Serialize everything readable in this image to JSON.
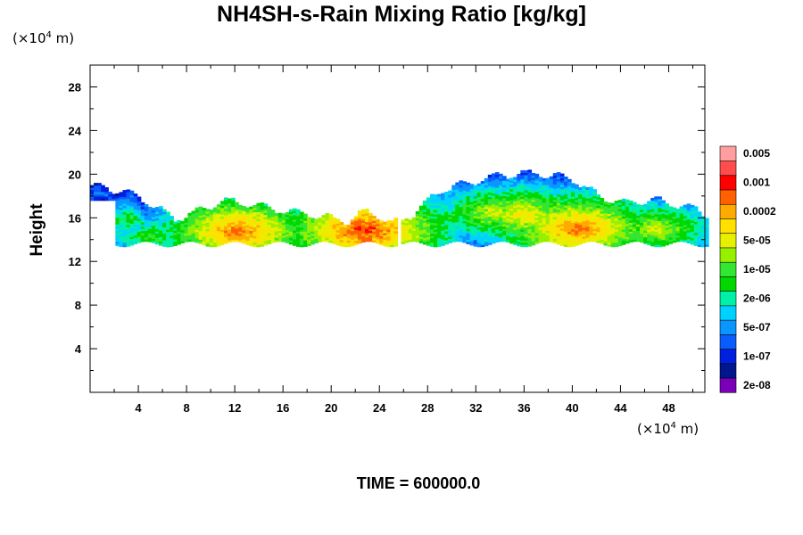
{
  "chart_data": {
    "type": "heatmap",
    "title": "NH4SH-s-Rain Mixing Ratio [kg/kg]",
    "ylabel": "Height",
    "x_unit": {
      "prefix": "(×10",
      "exp": "4",
      "suffix": " m)"
    },
    "y_unit": {
      "prefix": "(×10",
      "exp": "4",
      "suffix": " m)"
    },
    "xlim": [
      0,
      51
    ],
    "ylim": [
      0,
      30
    ],
    "x_ticks": [
      4,
      8,
      12,
      16,
      20,
      24,
      28,
      32,
      36,
      40,
      44,
      48
    ],
    "y_ticks": [
      4,
      8,
      12,
      16,
      20,
      24,
      28
    ],
    "colorbar": {
      "colors": [
        "#7a00b8",
        "#00168c",
        "#0020e0",
        "#0a5cff",
        "#0a96ff",
        "#00d2ff",
        "#00f0a8",
        "#00d800",
        "#32e632",
        "#96f000",
        "#e6f000",
        "#ffe000",
        "#ffaa00",
        "#ff6000",
        "#ff0000",
        "#ff4c4c",
        "#ff9e9e"
      ],
      "labels": [
        "2e-08",
        "1e-07",
        "5e-07",
        "2e-06",
        "1e-05",
        "5e-05",
        "0.0002",
        "0.001",
        "0.005"
      ]
    },
    "layer": {
      "base_height": 13.6,
      "top_profile": [
        [
          0.8,
          18.7
        ],
        [
          3,
          18.3
        ],
        [
          5,
          17.2
        ],
        [
          7,
          15.8
        ],
        [
          9,
          16.5
        ],
        [
          11,
          17.5
        ],
        [
          14,
          17.0
        ],
        [
          17,
          16.4
        ],
        [
          20,
          15.9
        ],
        [
          21.5,
          15.6
        ],
        [
          23,
          16.6
        ],
        [
          25,
          15.3
        ],
        [
          27,
          16.4
        ],
        [
          29,
          18.4
        ],
        [
          31,
          19.0
        ],
        [
          34,
          19.8
        ],
        [
          37,
          20.0
        ],
        [
          40,
          19.5
        ],
        [
          42,
          18.0
        ],
        [
          44,
          17.3
        ],
        [
          47,
          17.5
        ],
        [
          50,
          16.8
        ],
        [
          51,
          16.3
        ]
      ],
      "cores": [
        {
          "x": 12.3,
          "y": 14.8,
          "peak": 13
        },
        {
          "x": 22.8,
          "y": 14.9,
          "peak": 14
        },
        {
          "x": 36.0,
          "y": 16.3,
          "peak": 11
        },
        {
          "x": 40.5,
          "y": 15.0,
          "peak": 13
        },
        {
          "x": 33.5,
          "y": 16.5,
          "peak": 10
        },
        {
          "x": 47.0,
          "y": 15.0,
          "peak": 10
        },
        {
          "x": 5.0,
          "y": 14.3,
          "peak": 8
        },
        {
          "x": 18.5,
          "y": 14.6,
          "peak": 9
        }
      ]
    }
  },
  "footer": {
    "time_label": "TIME = 600000.0"
  }
}
